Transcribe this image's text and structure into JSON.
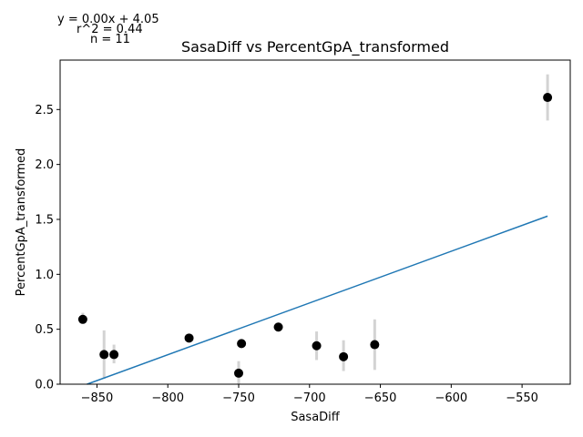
{
  "chart_data": {
    "type": "scatter",
    "title": "SasaDiff vs PercentGpA_transformed",
    "xlabel": "SasaDiff",
    "ylabel": "PercentGpA_transformed",
    "annotation_lines": [
      "y = 0.00x + 4.05",
      "r^2 = 0.44",
      "n = 11"
    ],
    "xlim": [
      -876,
      -516
    ],
    "ylim": [
      0,
      2.95
    ],
    "xticks": [
      -850,
      -800,
      -750,
      -700,
      -650,
      -600,
      -550
    ],
    "xtick_labels": [
      "−850",
      "−800",
      "−750",
      "−700",
      "−650",
      "−600",
      "−550"
    ],
    "yticks": [
      0.0,
      0.5,
      1.0,
      1.5,
      2.0,
      2.5
    ],
    "ytick_labels": [
      "0.0",
      "0.5",
      "1.0",
      "1.5",
      "2.0",
      "2.5"
    ],
    "grid": false,
    "series": [
      {
        "points": [
          {
            "x": -860,
            "y": 0.59,
            "err_low": 0.55,
            "err_high": 0.65
          },
          {
            "x": -845,
            "y": 0.27,
            "err_low": 0.05,
            "err_high": 0.49
          },
          {
            "x": -838,
            "y": 0.27,
            "err_low": 0.19,
            "err_high": 0.36
          },
          {
            "x": -785,
            "y": 0.42,
            "err_low": 0.4,
            "err_high": 0.44
          },
          {
            "x": -750,
            "y": 0.1,
            "err_low": 0.0,
            "err_high": 0.21
          },
          {
            "x": -748,
            "y": 0.37,
            "err_low": 0.34,
            "err_high": 0.4
          },
          {
            "x": -722,
            "y": 0.52,
            "err_low": 0.49,
            "err_high": 0.55
          },
          {
            "x": -695,
            "y": 0.35,
            "err_low": 0.22,
            "err_high": 0.48
          },
          {
            "x": -676,
            "y": 0.25,
            "err_low": 0.12,
            "err_high": 0.4
          },
          {
            "x": -654,
            "y": 0.36,
            "err_low": 0.13,
            "err_high": 0.59
          },
          {
            "x": -532,
            "y": 2.61,
            "err_low": 2.4,
            "err_high": 2.82
          }
        ]
      }
    ],
    "fit_line": {
      "x": [
        -857,
        -532
      ],
      "y": [
        0.0,
        1.53
      ]
    },
    "colors": {
      "points": "#000000",
      "errorbars": "#d3d3d3",
      "fit": "#1f77b4",
      "axes": "#000000"
    }
  }
}
